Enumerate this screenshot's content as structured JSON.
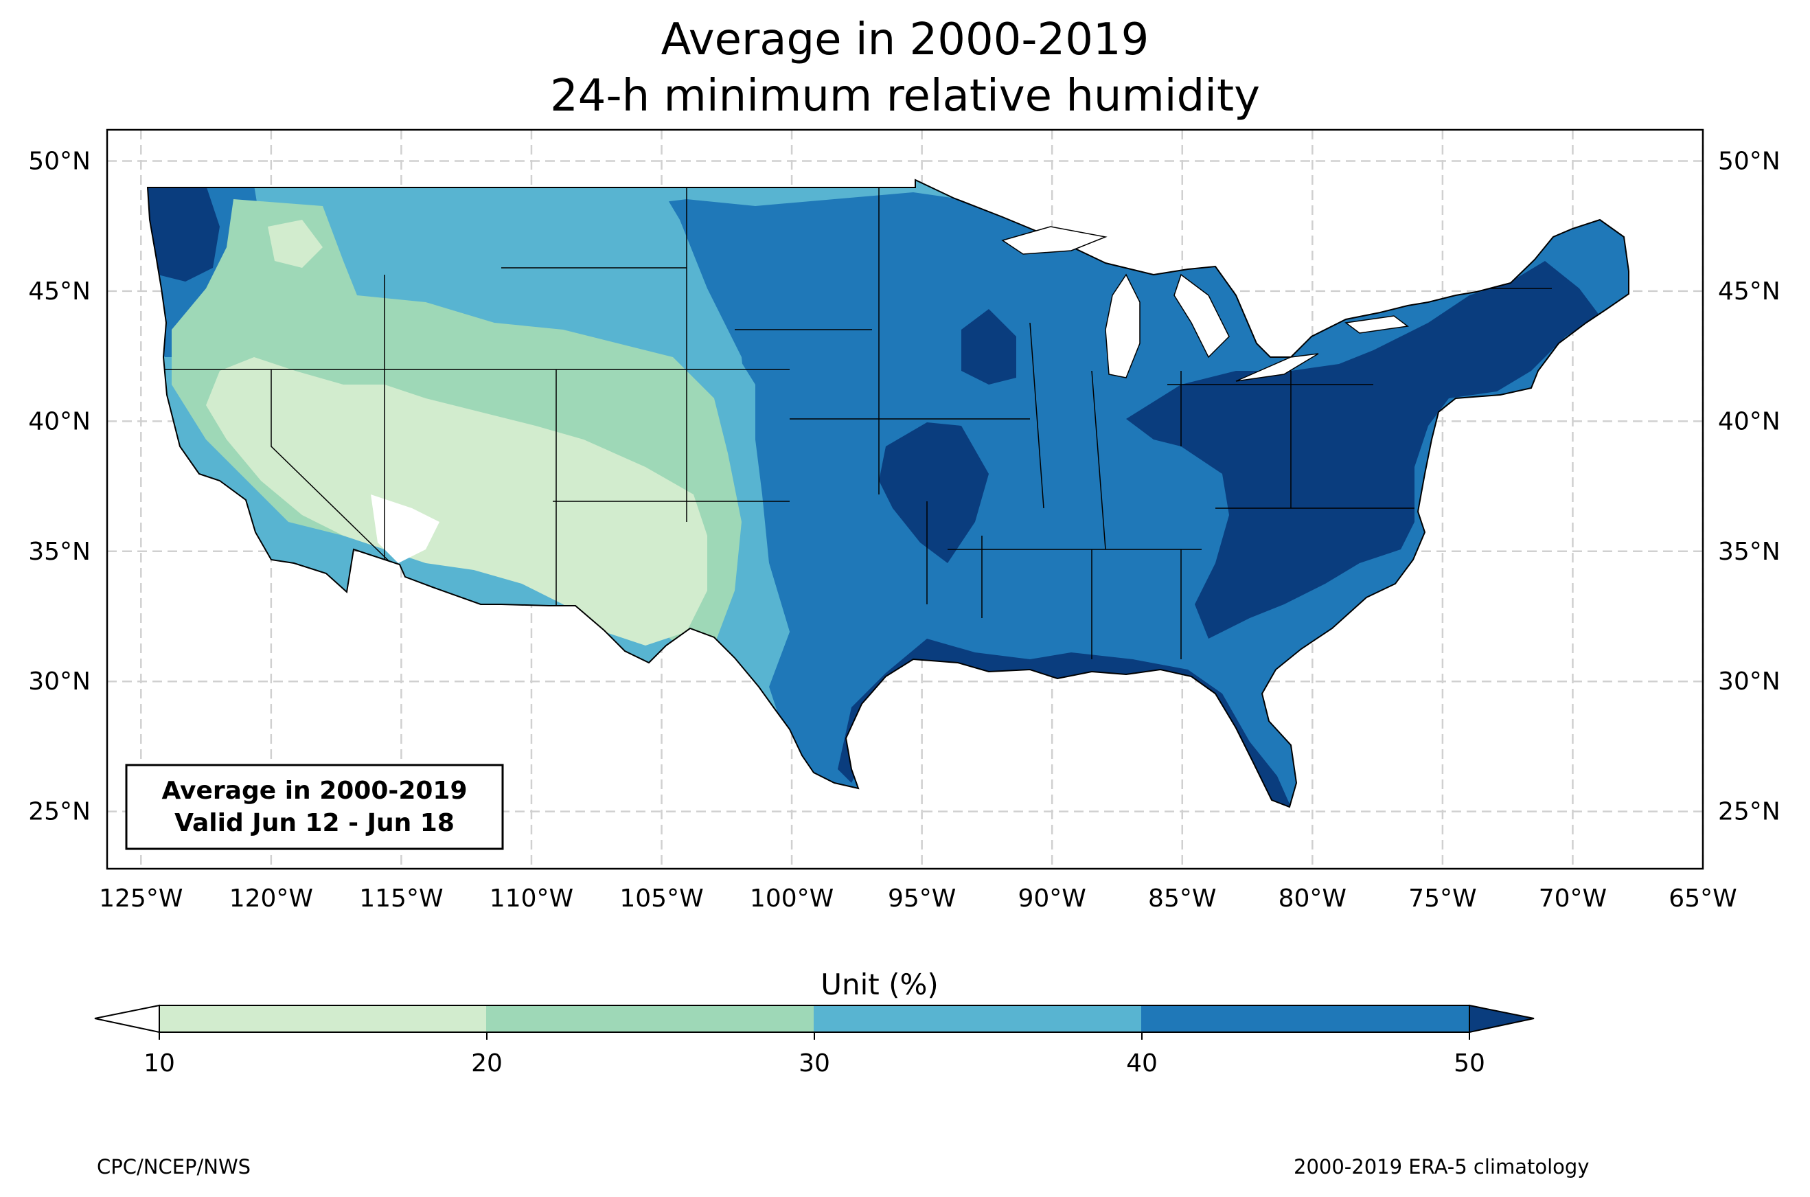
{
  "title": {
    "line1": "Average in 2000-2019",
    "line2": "24-h minimum relative humidity"
  },
  "map": {
    "extent": {
      "lon": [
        -126.3,
        -65.0
      ],
      "lat": [
        22.8,
        51.2
      ]
    },
    "lat_ticks": [
      "50°N",
      "45°N",
      "40°N",
      "35°N",
      "30°N",
      "25°N"
    ],
    "lon_ticks": [
      "125°W",
      "120°W",
      "115°W",
      "110°W",
      "105°W",
      "100°W",
      "95°W",
      "90°W",
      "85°W",
      "80°W",
      "75°W",
      "70°W",
      "65°W"
    ],
    "gridlines": true,
    "fill_region": "contiguous United States",
    "regions": [
      {
        "name": "Southwest deserts (NV, AZ, UT, NM, west TX)",
        "category": "10-20"
      },
      {
        "name": "Intermountain / northern Rockies / high plains",
        "category": "20-30"
      },
      {
        "name": "Great Plains transition / Pacific coast margin",
        "category": "30-40"
      },
      {
        "name": "Midwest, South and Northeast",
        "category": "40-50"
      },
      {
        "name": "Appalachians, Ohio Valley, Gulf coast, Northeast, NW Washington",
        "category": ">50"
      }
    ]
  },
  "annotation": {
    "line1": "Average in 2000-2019",
    "line2": "Valid Jun 12 - Jun 18"
  },
  "colorbar": {
    "label": "Unit (%)",
    "ticks": [
      "10",
      "20",
      "30",
      "40",
      "50"
    ],
    "colors": {
      "under": "#ffffff",
      "c10_20": "#d2ecce",
      "c20_30": "#9ed8b7",
      "c30_40": "#58b4d1",
      "c40_50": "#1f78b8",
      "over": "#0a3d7e"
    }
  },
  "footer": {
    "left": "CPC/NCEP/NWS",
    "right": "2000-2019 ERA-5 climatology"
  }
}
